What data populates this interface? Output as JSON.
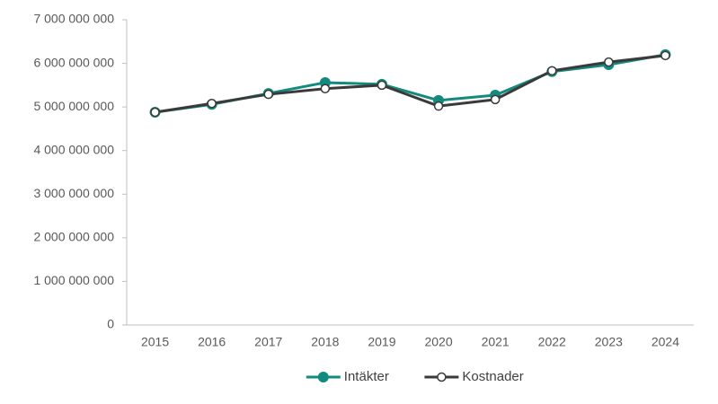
{
  "chart_data": {
    "type": "line",
    "categories": [
      "2015",
      "2016",
      "2017",
      "2018",
      "2019",
      "2020",
      "2021",
      "2022",
      "2023",
      "2024"
    ],
    "series": [
      {
        "name": "Intäkter",
        "color": "#138a7e",
        "marker": "filled",
        "values": [
          4880000000,
          5060000000,
          5310000000,
          5560000000,
          5520000000,
          5150000000,
          5270000000,
          5810000000,
          5970000000,
          6200000000
        ]
      },
      {
        "name": "Kostnader",
        "color": "#3a3a3a",
        "marker": "hollow",
        "values": [
          4880000000,
          5080000000,
          5290000000,
          5420000000,
          5500000000,
          5020000000,
          5170000000,
          5830000000,
          6030000000,
          6180000000
        ]
      }
    ],
    "ylim": [
      0,
      7000000000
    ],
    "yticks": [
      0,
      {
        "value": 1000000000,
        "label": "1 000 000 000"
      },
      {
        "value": 2000000000,
        "label": "2 000 000 000"
      },
      {
        "value": 3000000000,
        "label": "3 000 000 000"
      },
      {
        "value": 4000000000,
        "label": "4 000 000 000"
      },
      {
        "value": 5000000000,
        "label": "5 000 000 000"
      },
      {
        "value": 6000000000,
        "label": "6 000 000 000"
      },
      {
        "value": 7000000000,
        "label": "7 000 000 000"
      }
    ],
    "grid": false,
    "legend": "bottom"
  }
}
